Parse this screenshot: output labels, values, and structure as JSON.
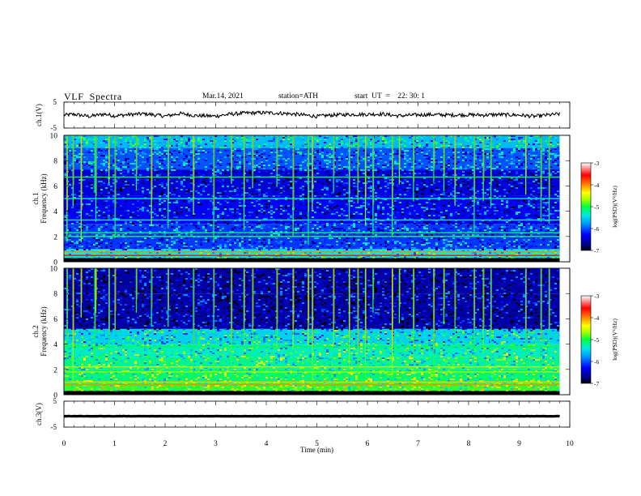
{
  "header": {
    "title": "VLF  Spectra",
    "date": "Mar.14, 2021",
    "station": "station=ATH",
    "start": "start  UT  =    22: 30: 1"
  },
  "chart_data": [
    {
      "type": "line",
      "name": "ch1-voltage",
      "ylabel": "ch.1(V)",
      "ytick_labels": [
        "5",
        "-5"
      ],
      "ylim": [
        -5,
        5
      ],
      "xlim": [
        0,
        10
      ],
      "series": [
        {
          "x": [
            0.0,
            0.2,
            0.5,
            0.8,
            1.0,
            1.3,
            1.6,
            2.0,
            2.3,
            2.6,
            3.0,
            3.3,
            3.6,
            4.0,
            4.3,
            4.6,
            5.0,
            5.3,
            5.6,
            6.0,
            6.3,
            6.6,
            7.0,
            7.3,
            7.6,
            8.0,
            8.3,
            8.6,
            9.0,
            9.3,
            9.6,
            9.8
          ],
          "y": [
            0.0,
            0.3,
            -0.5,
            0.4,
            -0.3,
            0.2,
            0.5,
            -0.4,
            0.6,
            -0.2,
            -0.4,
            0.4,
            0.8,
            0.9,
            0.7,
            0.3,
            -0.5,
            0.0,
            0.2,
            0.3,
            0.4,
            -0.3,
            0.1,
            0.2,
            0.0,
            0.1,
            0.0,
            0.2,
            0.0,
            -0.5,
            0.1,
            0.4
          ]
        }
      ]
    },
    {
      "type": "heatmap",
      "name": "ch1-spectrogram",
      "ylabel_lines": [
        "ch.1",
        "Frequency (kHz)"
      ],
      "ytick_labels": [
        "10",
        "8",
        "6",
        "4",
        "2",
        "0"
      ],
      "ylim": [
        0,
        10
      ],
      "xlim": [
        0,
        9.8
      ],
      "colorbar": {
        "label": "log(PSD)(V²/Hz)",
        "tick_labels": [
          "-3",
          "-4",
          "-5",
          "-6",
          "-7"
        ],
        "range": [
          -7,
          -3
        ]
      },
      "bands_khz": [
        {
          "f0": 9.0,
          "f1": 10.0,
          "level": -5.6
        },
        {
          "f0": 7.3,
          "f1": 9.0,
          "level": -6.0
        },
        {
          "f0": 5.2,
          "f1": 7.3,
          "level": -6.4
        },
        {
          "f0": 3.0,
          "f1": 5.2,
          "level": -6.3
        },
        {
          "f0": 1.0,
          "f1": 3.0,
          "level": -6.1
        },
        {
          "f0": 0.3,
          "f1": 1.0,
          "level": -5.4
        },
        {
          "f0": 0.0,
          "f1": 0.3,
          "level": -6.9
        }
      ],
      "tone_lines_khz": [
        {
          "f": 6.7,
          "level": -5.0
        },
        {
          "f": 5.0,
          "level": -5.3
        },
        {
          "f": 3.3,
          "level": -5.4
        },
        {
          "f": 2.3,
          "level": -5.1
        },
        {
          "f": 2.0,
          "level": -5.0
        },
        {
          "f": 0.8,
          "level": -4.0
        },
        {
          "f": 0.5,
          "level": -3.6
        }
      ],
      "sferic_times_min": [
        0.05,
        0.17,
        0.33,
        0.6,
        0.62,
        0.88,
        1.0,
        1.42,
        1.72,
        2.05,
        2.55,
        2.95,
        3.3,
        3.55,
        3.72,
        4.2,
        4.52,
        4.82,
        4.9,
        5.32,
        5.63,
        5.8,
        5.95,
        6.1,
        6.48,
        6.62,
        6.9,
        7.3,
        7.5,
        7.72,
        8.1,
        8.28,
        8.43,
        9.12,
        9.42,
        9.58
      ]
    },
    {
      "type": "heatmap",
      "name": "ch2-spectrogram",
      "ylabel_lines": [
        "ch.2",
        "Frequency (kHz)"
      ],
      "ytick_labels": [
        "10",
        "8",
        "6",
        "4",
        "2",
        "0"
      ],
      "ylim": [
        0,
        10
      ],
      "xlim": [
        0,
        9.8
      ],
      "colorbar": {
        "label": "log(PSD)(V²/Hz)",
        "tick_labels": [
          "-3",
          "-4",
          "-5",
          "-6",
          "-7"
        ],
        "range": [
          -7,
          -3
        ]
      },
      "bands_khz": [
        {
          "f0": 8.0,
          "f1": 10.0,
          "level": -6.6
        },
        {
          "f0": 5.2,
          "f1": 8.0,
          "level": -6.6
        },
        {
          "f0": 4.0,
          "f1": 5.2,
          "level": -5.5
        },
        {
          "f0": 3.0,
          "f1": 4.0,
          "level": -5.3
        },
        {
          "f0": 2.0,
          "f1": 3.0,
          "level": -5.2
        },
        {
          "f0": 1.0,
          "f1": 2.0,
          "level": -5.1
        },
        {
          "f0": 0.3,
          "f1": 1.0,
          "level": -4.9
        },
        {
          "f0": 0.0,
          "f1": 0.3,
          "level": -6.9
        }
      ],
      "tone_lines_khz": [
        {
          "f": 3.8,
          "level": -5.0
        },
        {
          "f": 2.2,
          "level": -4.6
        },
        {
          "f": 1.8,
          "level": -4.7
        },
        {
          "f": 1.0,
          "level": -4.2
        },
        {
          "f": 0.8,
          "level": -4.0
        }
      ],
      "sferic_times_min": [
        0.05,
        0.17,
        0.33,
        0.6,
        0.62,
        0.88,
        1.0,
        1.42,
        1.72,
        2.05,
        2.55,
        2.95,
        3.3,
        3.55,
        3.72,
        4.2,
        4.52,
        4.82,
        4.9,
        5.32,
        5.63,
        5.8,
        5.95,
        6.1,
        6.48,
        6.62,
        6.9,
        7.3,
        7.5,
        7.72,
        8.1,
        8.28,
        8.43,
        9.12,
        9.42,
        9.58
      ]
    },
    {
      "type": "line",
      "name": "ch3-voltage",
      "ylabel": "ch.3(V)",
      "ytick_labels": [
        "5",
        "-5"
      ],
      "ylim": [
        -5,
        5
      ],
      "xlim": [
        0,
        10
      ],
      "series": [
        {
          "x": [
            0,
            9.8
          ],
          "y": [
            -0.8,
            -0.8
          ]
        }
      ]
    }
  ],
  "xaxis": {
    "label": "Time  (min)",
    "tick_labels": [
      "0",
      "1",
      "2",
      "3",
      "4",
      "5",
      "6",
      "7",
      "8",
      "9",
      "10"
    ],
    "range": [
      0,
      10
    ]
  }
}
